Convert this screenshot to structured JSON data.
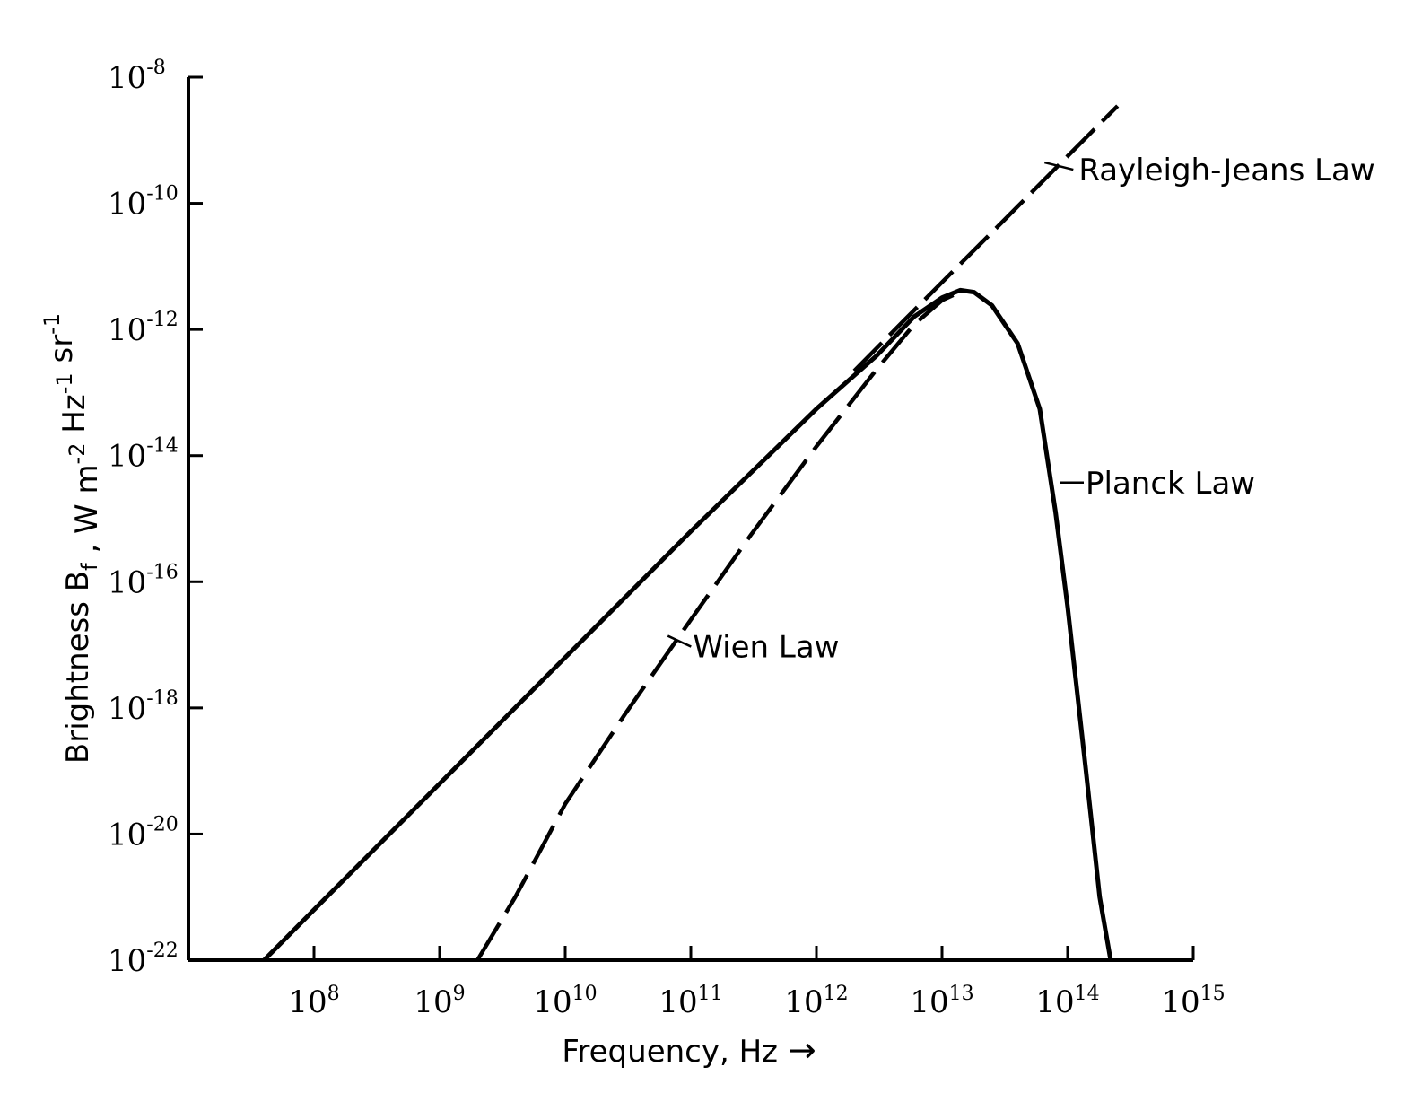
{
  "chart_data": {
    "type": "line",
    "title": "",
    "xlabel": "Frequency, Hz",
    "ylabel": "Brightness B_f , W m^-2 Hz^-1 sr^-1",
    "xscale": "log",
    "yscale": "log",
    "xlim": [
      10000000.0,
      1000000000000000.0
    ],
    "ylim": [
      1e-22,
      1e-08
    ],
    "grid": false,
    "x_ticks": [
      {
        "base": "10",
        "exp": "8",
        "value": 100000000.0
      },
      {
        "base": "10",
        "exp": "9",
        "value": 1000000000.0
      },
      {
        "base": "10",
        "exp": "10",
        "value": 10000000000.0
      },
      {
        "base": "10",
        "exp": "11",
        "value": 100000000000.0
      },
      {
        "base": "10",
        "exp": "12",
        "value": 1000000000000.0
      },
      {
        "base": "10",
        "exp": "13",
        "value": 10000000000000.0
      },
      {
        "base": "10",
        "exp": "14",
        "value": 100000000000000.0
      },
      {
        "base": "10",
        "exp": "15",
        "value": 1000000000000000.0
      }
    ],
    "y_ticks": [
      {
        "base": "10",
        "exp": "-22",
        "value": 1e-22
      },
      {
        "base": "10",
        "exp": "-20",
        "value": 1e-20
      },
      {
        "base": "10",
        "exp": "-18",
        "value": 1e-18
      },
      {
        "base": "10",
        "exp": "-16",
        "value": 1e-16
      },
      {
        "base": "10",
        "exp": "-14",
        "value": 1e-14
      },
      {
        "base": "10",
        "exp": "-12",
        "value": 1e-12
      },
      {
        "base": "10",
        "exp": "-10",
        "value": 1e-10
      },
      {
        "base": "10",
        "exp": "-8",
        "value": 1e-08
      }
    ],
    "series": [
      {
        "name": "Planck Law",
        "style": "solid",
        "points": [
          [
            40000000.0,
            1e-22
          ],
          [
            100000000.0,
            6.3e-22
          ],
          [
            1000000000.0,
            6.3e-20
          ],
          [
            10000000000.0,
            6.3e-18
          ],
          [
            100000000000.0,
            6.3e-16
          ],
          [
            1000000000000.0,
            5.5e-14
          ],
          [
            3000000000000.0,
            3.8e-13
          ],
          [
            6000000000000.0,
            1.6e-12
          ],
          [
            10000000000000.0,
            3.2e-12
          ],
          [
            14000000000000.0,
            4.2e-12
          ],
          [
            18000000000000.0,
            3.9e-12
          ],
          [
            25000000000000.0,
            2.4e-12
          ],
          [
            40000000000000.0,
            6e-13
          ],
          [
            60000000000000.0,
            5.5e-14
          ],
          [
            80000000000000.0,
            1.3e-15
          ],
          [
            100000000000000.0,
            4e-17
          ],
          [
            140000000000000.0,
            1e-19
          ],
          [
            180000000000000.0,
            1e-21
          ],
          [
            220000000000000.0,
            1e-22
          ]
        ]
      },
      {
        "name": "Rayleigh-Jeans Law",
        "style": "dashed",
        "points": [
          [
            2000000000000.0,
            2.2e-13
          ],
          [
            5000000000000.0,
            1.4e-12
          ],
          [
            10000000000000.0,
            5.6e-12
          ],
          [
            30000000000000.0,
            5e-11
          ],
          [
            100000000000000.0,
            5.6e-10
          ],
          [
            250000000000000.0,
            3.5e-09
          ]
        ]
      },
      {
        "name": "Wien Law",
        "style": "dashed",
        "points": [
          [
            2000000000.0,
            1e-22
          ],
          [
            4000000000.0,
            1e-21
          ],
          [
            10000000000.0,
            3e-20
          ],
          [
            30000000000.0,
            8e-19
          ],
          [
            100000000000.0,
            2.5e-17
          ],
          [
            300000000000.0,
            5.5e-16
          ],
          [
            1000000000000.0,
            1.4e-14
          ],
          [
            3000000000000.0,
            2.3e-13
          ],
          [
            6000000000000.0,
            1.2e-12
          ],
          [
            10000000000000.0,
            2.9e-12
          ],
          [
            15000000000000.0,
            4.2e-12
          ]
        ]
      }
    ],
    "annotations": [
      {
        "text": "Rayleigh-Jeans Law",
        "series": "Rayleigh-Jeans Law",
        "at": [
          70000000000000.0,
          3.2e-10
        ]
      },
      {
        "text": "Planck Law",
        "series": "Planck Law",
        "at": [
          100000000000000.0,
          3.5e-15
        ]
      },
      {
        "text": "Wien Law",
        "series": "Wien Law",
        "at": [
          70000000000.0,
          1e-17
        ]
      }
    ],
    "xlabel_arrow": "→"
  }
}
